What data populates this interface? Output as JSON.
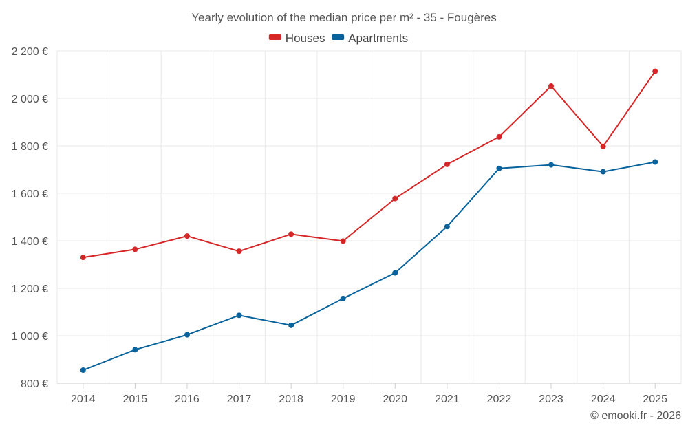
{
  "chart_data": {
    "type": "line",
    "title": "Yearly evolution of the median price per m² - 35 - Fougères",
    "categories": [
      "2014",
      "2015",
      "2016",
      "2017",
      "2018",
      "2019",
      "2020",
      "2021",
      "2022",
      "2023",
      "2024",
      "2025"
    ],
    "series": [
      {
        "name": "Houses",
        "color": "#d62728",
        "values": [
          1330,
          1364,
          1420,
          1356,
          1428,
          1399,
          1578,
          1722,
          1838,
          2052,
          1798,
          2114
        ]
      },
      {
        "name": "Apartments",
        "color": "#08639c",
        "values": [
          855,
          941,
          1004,
          1086,
          1044,
          1157,
          1265,
          1460,
          1705,
          1720,
          1691,
          1732
        ]
      }
    ],
    "ylim": [
      800,
      2200
    ],
    "yticks": [
      800,
      1000,
      1200,
      1400,
      1600,
      1800,
      2000,
      2200
    ],
    "ytick_labels": [
      "800 €",
      "1 000 €",
      "1 200 €",
      "1 400 €",
      "1 600 €",
      "1 800 €",
      "2 000 €",
      "2 200 €"
    ],
    "xlabel": "",
    "ylabel": "",
    "grid": true,
    "legend_position": "top-center"
  },
  "credit": "© emooki.fr - 2026"
}
